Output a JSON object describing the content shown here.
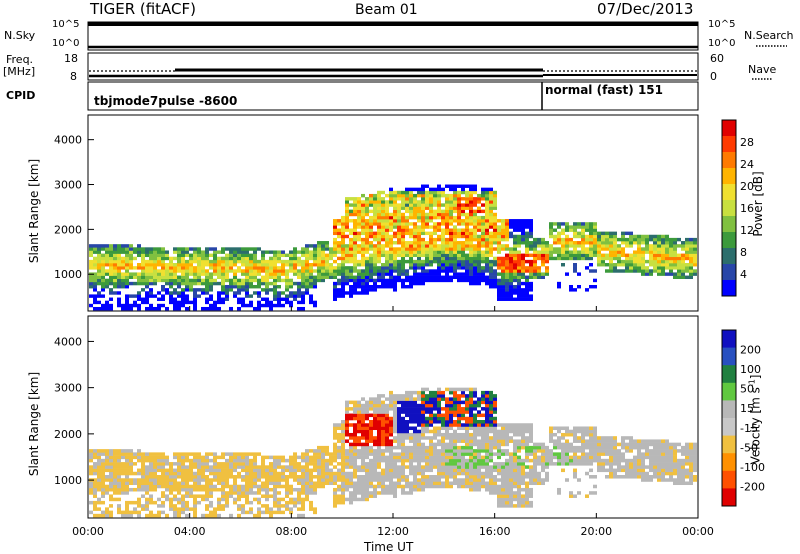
{
  "header": {
    "title": "TIGER (fitACF)",
    "beam": "Beam 01",
    "date": "07/Dec/2013"
  },
  "sky_panel": {
    "left_label": "N.Sky",
    "right_label": "N.Search",
    "top_tick": "10^5",
    "bottom_tick": "10^0"
  },
  "freq_panel": {
    "left_label_line1": "Freq.",
    "left_label_line2": "[MHz]",
    "left_ticks": [
      "18",
      "8"
    ],
    "right_label": "Nave",
    "right_ticks": [
      "60",
      "0"
    ]
  },
  "cpid_panel": {
    "label": "CPID",
    "mode1": "tbjmode7pulse -8600",
    "mode2": "normal (fast) 151"
  },
  "chart_data": [
    {
      "type": "heatmap",
      "panel": "power",
      "ylabel": "Slant Range [km]",
      "yticks": [
        1000,
        2000,
        3000,
        4000
      ],
      "ylim": [
        180,
        4550
      ],
      "xticks": [
        "00:00",
        "04:00",
        "08:00",
        "12:00",
        "16:00",
        "20:00",
        "00:00"
      ],
      "xlim_hours": [
        0,
        24
      ],
      "colorbar": {
        "label": "Power [dB]",
        "ticks": [
          "28",
          "24",
          "20",
          "16",
          "12",
          "8",
          "4"
        ],
        "colors": [
          "#e00000",
          "#ff3a00",
          "#ff7a00",
          "#ffb400",
          "#f0e030",
          "#c8e040",
          "#80c040",
          "#3c9a3c",
          "#2c6e6c",
          "#2846a8",
          "#0000ff"
        ]
      }
    },
    {
      "type": "heatmap",
      "panel": "velocity",
      "ylabel": "Slant Range [km]",
      "yticks": [
        1000,
        2000,
        3000,
        4000
      ],
      "ylim": [
        180,
        4550
      ],
      "xticks": [
        "00:00",
        "04:00",
        "08:00",
        "12:00",
        "16:00",
        "20:00",
        "00:00"
      ],
      "xlim_hours": [
        0,
        24
      ],
      "xlabel": "Time UT",
      "colorbar": {
        "label": "Velocity [m s",
        "label_exp": "-1",
        "label_end": "]",
        "ticks": [
          "200",
          "100",
          "50",
          "15",
          "-15",
          "-50",
          "-100",
          "-200"
        ],
        "colors": [
          "#1010c0",
          "#2850c0",
          "#208040",
          "#60c840",
          "#b8b8b8",
          "#c8c8c8",
          "#f0c040",
          "#ff9000",
          "#ff5000",
          "#e00000"
        ]
      }
    }
  ]
}
